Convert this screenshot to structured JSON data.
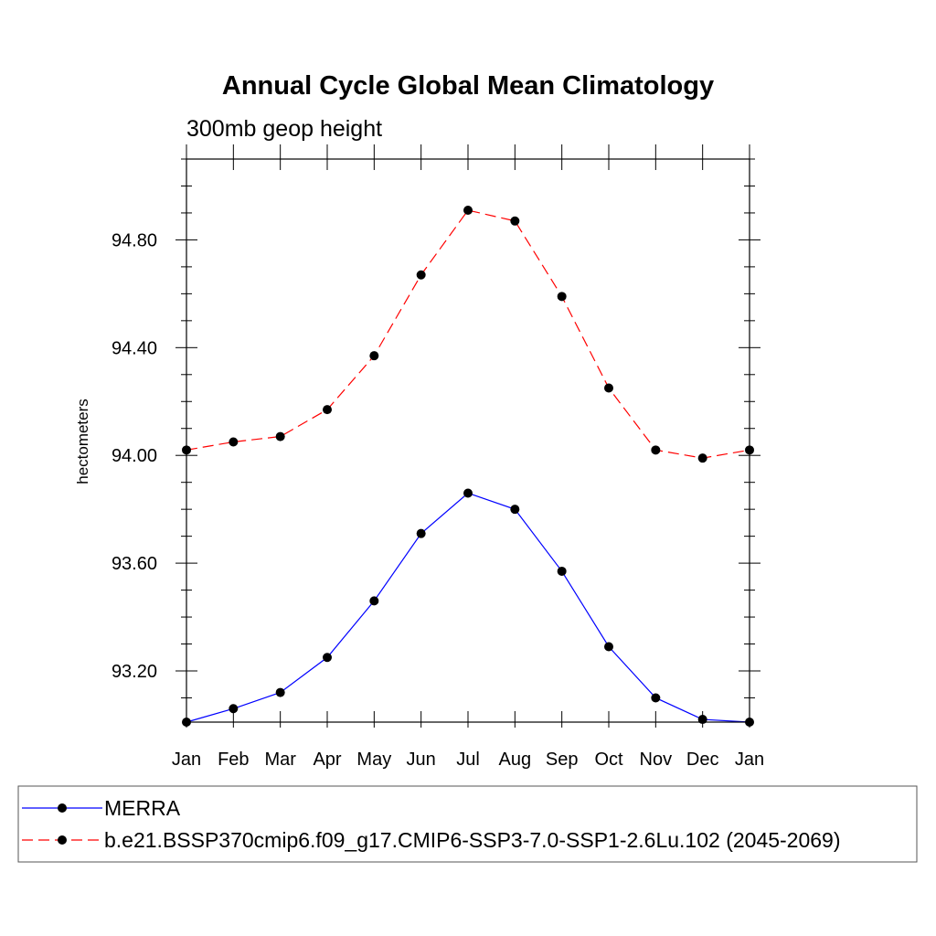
{
  "chart_data": {
    "type": "line",
    "title": "Annual Cycle Global Mean Climatology",
    "subtitle": "300mb geop height",
    "xlabel": "",
    "ylabel": "hectometers",
    "categories": [
      "Jan",
      "Feb",
      "Mar",
      "Apr",
      "May",
      "Jun",
      "Jul",
      "Aug",
      "Sep",
      "Oct",
      "Nov",
      "Dec",
      "Jan"
    ],
    "ylim": [
      93.01,
      95.1
    ],
    "yticks": [
      93.2,
      93.6,
      94.0,
      94.4,
      94.8
    ],
    "ytick_labels": [
      "93.20",
      "93.60",
      "94.00",
      "94.40",
      "94.80"
    ],
    "grid": false,
    "legend_position": "bottom",
    "series": [
      {
        "name": "MERRA",
        "color": "#0000ff",
        "line_style": "solid",
        "values": [
          93.01,
          93.06,
          93.12,
          93.25,
          93.46,
          93.71,
          93.86,
          93.8,
          93.57,
          93.29,
          93.1,
          93.02,
          93.01
        ]
      },
      {
        "name": "b.e21.BSSP370cmip6.f09_g17.CMIP6-SSP3-7.0-SSP1-2.6Lu.102 (2045-2069)",
        "color": "#ff0000",
        "line_style": "dashed",
        "values": [
          94.02,
          94.05,
          94.07,
          94.17,
          94.37,
          94.67,
          94.91,
          94.87,
          94.59,
          94.25,
          94.02,
          93.99,
          94.02
        ]
      }
    ]
  }
}
